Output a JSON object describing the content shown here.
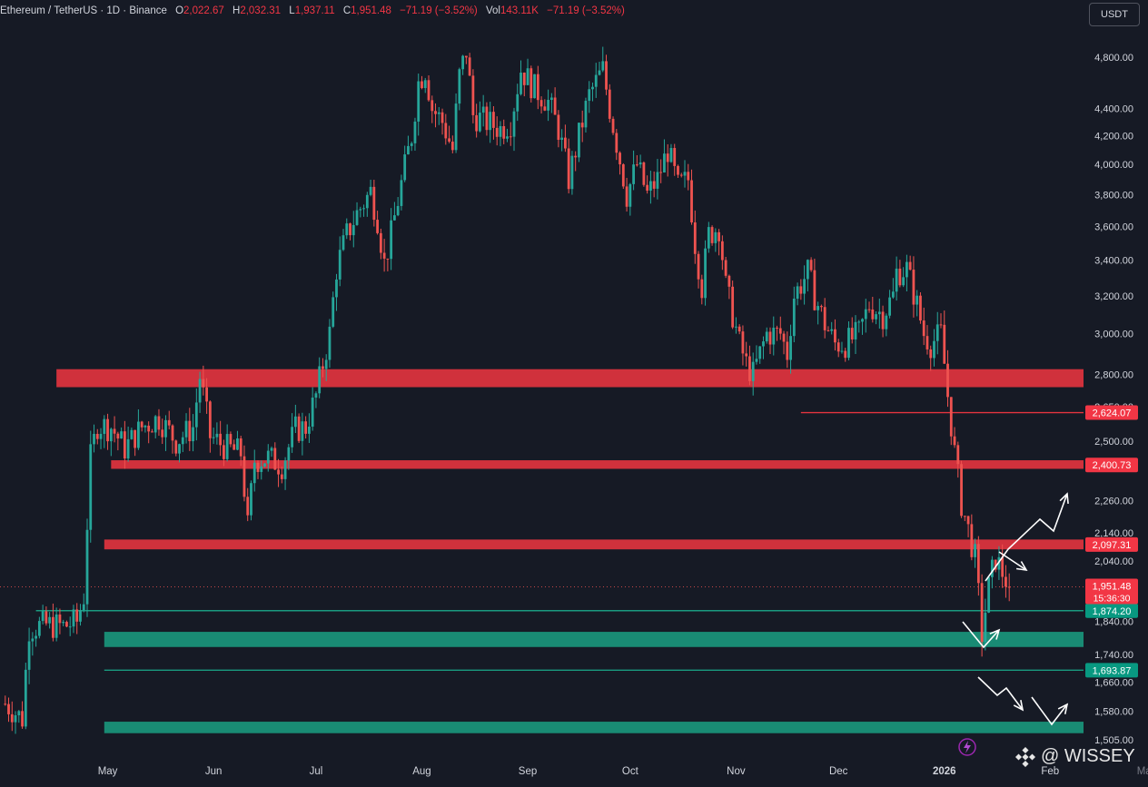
{
  "header": {
    "symbol": "Ethereum / TetherUS · 1D · Binance",
    "o_label": "O",
    "o": "2,022.67",
    "h_label": "H",
    "h": "2,032.31",
    "l_label": "L",
    "l": "1,937.11",
    "c_label": "C",
    "c": "1,951.48",
    "change": "−71.19 (−3.52%)",
    "vol_label": "Vol",
    "vol": "143.11K",
    "vol_change": "−71.19 (−3.52%)"
  },
  "currency_button": "USDT",
  "watermark": "@ WISSEY",
  "colors": {
    "background": "#161a25",
    "up": "#26a69a",
    "down": "#ef5350",
    "resistance": "#e4343f",
    "support": "#1a9b80"
  },
  "chart_data": {
    "type": "candlestick",
    "scale": "log",
    "ylim": [
      1505,
      5150
    ],
    "y_ticks": [
      "4,800.00",
      "4,400.00",
      "4,200.00",
      "4,000.00",
      "3,800.00",
      "3,600.00",
      "3,400.00",
      "3,200.00",
      "3,000.00",
      "2,800.00",
      "2,650.00",
      "2,500.00",
      "2,260.00",
      "2,140.00",
      "2,040.00",
      "1,840.00",
      "1,740.00",
      "1,660.00",
      "1,580.00",
      "1,505.00"
    ],
    "x_ticks": [
      "May",
      "Jun",
      "Jul",
      "Aug",
      "Sep",
      "Oct",
      "Nov",
      "Dec",
      "2026",
      "Feb",
      "Mar"
    ],
    "last_price": "1,951.48",
    "countdown": "15:36:30",
    "price_labels": [
      {
        "text": "2,624.07",
        "kind": "red"
      },
      {
        "text": "2,400.73",
        "kind": "red"
      },
      {
        "text": "2,097.31",
        "kind": "red"
      },
      {
        "text": "1,874.20",
        "kind": "green"
      },
      {
        "text": "1,693.87",
        "kind": "green"
      }
    ],
    "zones": [
      {
        "kind": "resistance",
        "from": 2740,
        "to": 2825,
        "start": "Apr 16"
      },
      {
        "kind": "resistance",
        "from": 2385,
        "to": 2420,
        "start": "May 2"
      },
      {
        "kind": "resistance",
        "from": 2080,
        "to": 2115,
        "start": "Mar 31"
      },
      {
        "kind": "support",
        "from": 1762,
        "to": 1808,
        "start": "Mar 31"
      },
      {
        "kind": "support",
        "from": 1522,
        "to": 1552,
        "start": "Mar 31"
      }
    ],
    "lines": [
      {
        "price": 2624.07,
        "kind": "red",
        "start": "Nov 20"
      },
      {
        "price": 1874.2,
        "kind": "green",
        "start": "Apr 10"
      },
      {
        "price": 1693.87,
        "kind": "green",
        "start": "Mar 31"
      }
    ],
    "path": [
      [
        1,
        1600
      ],
      [
        6,
        1560
      ],
      [
        8,
        1820
      ],
      [
        13,
        1830
      ],
      [
        18,
        1825
      ],
      [
        22,
        1840
      ],
      [
        24,
        1920
      ],
      [
        26,
        2430
      ],
      [
        28,
        2570
      ],
      [
        32,
        2560
      ],
      [
        36,
        2470
      ],
      [
        41,
        2560
      ],
      [
        46,
        2600
      ],
      [
        51,
        2500
      ],
      [
        56,
        2560
      ],
      [
        58,
        2790
      ],
      [
        61,
        2520
      ],
      [
        66,
        2470
      ],
      [
        70,
        2450
      ],
      [
        72,
        2160
      ],
      [
        74,
        2420
      ],
      [
        78,
        2430
      ],
      [
        82,
        2400
      ],
      [
        86,
        2550
      ],
      [
        89,
        2560
      ],
      [
        92,
        2700
      ],
      [
        96,
        3000
      ],
      [
        98,
        3350
      ],
      [
        101,
        3550
      ],
      [
        104,
        3680
      ],
      [
        108,
        3820
      ],
      [
        110,
        3650
      ],
      [
        112,
        3380
      ],
      [
        114,
        3550
      ],
      [
        117,
        3870
      ],
      [
        120,
        4200
      ],
      [
        122,
        4600
      ],
      [
        124,
        4700
      ],
      [
        126,
        4400
      ],
      [
        129,
        4300
      ],
      [
        132,
        4100
      ],
      [
        134,
        4650
      ],
      [
        136,
        4850
      ],
      [
        138,
        4350
      ],
      [
        142,
        4300
      ],
      [
        146,
        4250
      ],
      [
        149,
        4300
      ],
      [
        152,
        4700
      ],
      [
        156,
        4550
      ],
      [
        160,
        4450
      ],
      [
        163,
        4250
      ],
      [
        166,
        3900
      ],
      [
        169,
        4200
      ],
      [
        172,
        4500
      ],
      [
        174,
        4600
      ],
      [
        176,
        4700
      ],
      [
        178,
        4400
      ],
      [
        180,
        4150
      ],
      [
        183,
        3800
      ],
      [
        186,
        4000
      ],
      [
        189,
        3800
      ],
      [
        192,
        3900
      ],
      [
        195,
        4100
      ],
      [
        198,
        3850
      ],
      [
        201,
        3900
      ],
      [
        203,
        3500
      ],
      [
        205,
        3250
      ],
      [
        207,
        3550
      ],
      [
        210,
        3600
      ],
      [
        212,
        3250
      ],
      [
        214,
        3100
      ],
      [
        216,
        2950
      ],
      [
        218,
        2850
      ],
      [
        220,
        2800
      ],
      [
        222,
        2900
      ],
      [
        224,
        3000
      ],
      [
        228,
        3000
      ],
      [
        230,
        2900
      ],
      [
        232,
        3200
      ],
      [
        236,
        3330
      ],
      [
        238,
        3200
      ],
      [
        241,
        3050
      ],
      [
        244,
        2950
      ],
      [
        247,
        2950
      ],
      [
        251,
        3000
      ],
      [
        254,
        3150
      ],
      [
        258,
        3100
      ],
      [
        261,
        3200
      ],
      [
        262,
        3330
      ],
      [
        265,
        3350
      ],
      [
        268,
        3150
      ],
      [
        270,
        3000
      ],
      [
        272,
        2950
      ],
      [
        275,
        3000
      ],
      [
        277,
        2700
      ],
      [
        279,
        2450
      ],
      [
        281,
        2250
      ],
      [
        283,
        2150
      ],
      [
        285,
        2050
      ],
      [
        287,
        1800
      ],
      [
        289,
        1950
      ],
      [
        291,
        2050
      ],
      [
        293,
        2000
      ],
      [
        295,
        1951
      ]
    ]
  }
}
